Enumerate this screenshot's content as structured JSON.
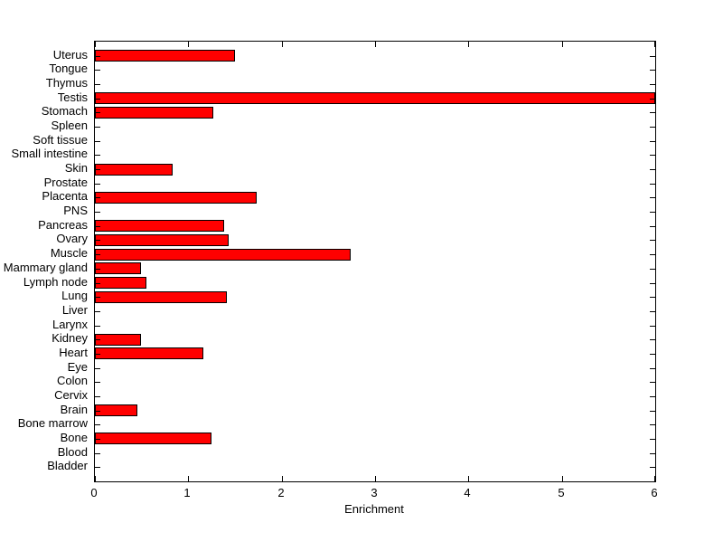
{
  "chart_data": {
    "type": "bar",
    "orientation": "horizontal",
    "title": "",
    "xlabel": "Enrichment",
    "ylabel": "",
    "xlim": [
      0,
      6
    ],
    "xticks": [
      0,
      1,
      2,
      3,
      4,
      5,
      6
    ],
    "grid": false,
    "legend": false,
    "bar_color": "#FF0000",
    "bar_edge_color": "#000000",
    "axis_color": "#000000",
    "background_color": "#FFFFFF",
    "categories_top_to_bottom": [
      "Uterus",
      "Tongue",
      "Thymus",
      "Testis",
      "Stomach",
      "Spleen",
      "Soft tissue",
      "Small intestine",
      "Skin",
      "Prostate",
      "Placenta",
      "PNS",
      "Pancreas",
      "Ovary",
      "Muscle",
      "Mammary gland",
      "Lymph node",
      "Lung",
      "Liver",
      "Larynx",
      "Kidney",
      "Heart",
      "Eye",
      "Colon",
      "Cervix",
      "Brain",
      "Bone marrow",
      "Bone",
      "Blood",
      "Bladder"
    ],
    "values": [
      1.5,
      0,
      0,
      6.0,
      1.27,
      0,
      0,
      0,
      0.83,
      0,
      1.73,
      0,
      1.38,
      1.43,
      2.74,
      0.49,
      0.55,
      1.41,
      0,
      0,
      0.49,
      1.16,
      0,
      0,
      0,
      0.45,
      0,
      1.25,
      0,
      0
    ]
  }
}
